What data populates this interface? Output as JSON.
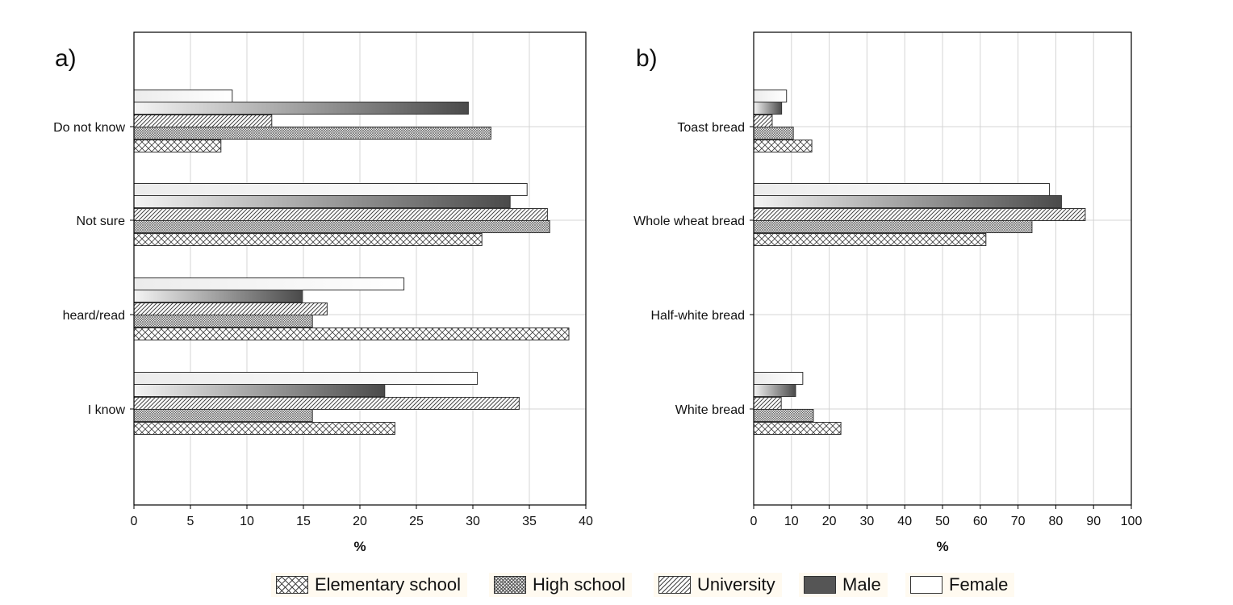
{
  "legend": {
    "items": [
      {
        "label": "Elementary school",
        "pattern": "crosshatch"
      },
      {
        "label": "High school",
        "pattern": "dense-dots"
      },
      {
        "label": "University",
        "pattern": "diagonal"
      },
      {
        "label": "Male",
        "pattern": "solid-dark",
        "color": "#555555"
      },
      {
        "label": "Female",
        "pattern": "solid-white",
        "color": "#ffffff"
      }
    ]
  },
  "chart_data": [
    {
      "type": "bar",
      "orientation": "horizontal",
      "panel_label": "a)",
      "xlabel": "%",
      "xlim": [
        0,
        40
      ],
      "xticks": [
        0,
        5,
        10,
        15,
        20,
        25,
        30,
        35,
        40
      ],
      "categories": [
        "Do not know",
        "Not sure",
        "heard/read",
        "I know"
      ],
      "grid": true,
      "series": [
        {
          "name": "Female",
          "values": [
            8.7,
            34.8,
            23.9,
            30.4
          ]
        },
        {
          "name": "Male",
          "values": [
            29.6,
            33.3,
            14.9,
            22.2
          ]
        },
        {
          "name": "University",
          "values": [
            12.2,
            36.6,
            17.1,
            34.1
          ]
        },
        {
          "name": "High school",
          "values": [
            31.6,
            36.8,
            15.8,
            15.8
          ]
        },
        {
          "name": "Elementary school",
          "values": [
            7.7,
            30.8,
            38.5,
            23.1
          ]
        }
      ]
    },
    {
      "type": "bar",
      "orientation": "horizontal",
      "panel_label": "b)",
      "xlabel": "%",
      "xlim": [
        0,
        100
      ],
      "xticks": [
        0,
        10,
        20,
        30,
        40,
        50,
        60,
        70,
        80,
        90,
        100
      ],
      "categories": [
        "Toast bread",
        "Whole wheat bread",
        "Half-white bread",
        "White bread"
      ],
      "grid": true,
      "series": [
        {
          "name": "Female",
          "values": [
            8.7,
            78.3,
            0,
            13.0
          ]
        },
        {
          "name": "Male",
          "values": [
            7.4,
            81.5,
            0,
            11.1
          ]
        },
        {
          "name": "University",
          "values": [
            4.9,
            87.8,
            0,
            7.3
          ]
        },
        {
          "name": "High school",
          "values": [
            10.5,
            73.7,
            0,
            15.8
          ]
        },
        {
          "name": "Elementary school",
          "values": [
            15.4,
            61.5,
            0,
            23.1
          ]
        }
      ]
    }
  ]
}
